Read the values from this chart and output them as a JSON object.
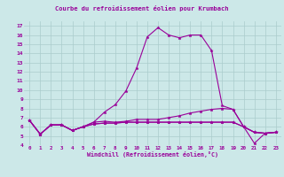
{
  "title": "Courbe du refroidissement éolien pour Krumbach",
  "xlabel": "Windchill (Refroidissement éolien,°C)",
  "background_color": "#cce8e8",
  "grid_color": "#aacccc",
  "line_color": "#990099",
  "xlim": [
    -0.5,
    23.5
  ],
  "ylim": [
    4,
    17.5
  ],
  "xticks": [
    0,
    1,
    2,
    3,
    4,
    5,
    6,
    7,
    8,
    9,
    10,
    11,
    12,
    13,
    14,
    15,
    16,
    17,
    18,
    19,
    20,
    21,
    22,
    23
  ],
  "yticks": [
    4,
    5,
    6,
    7,
    8,
    9,
    10,
    11,
    12,
    13,
    14,
    15,
    16,
    17
  ],
  "series": [
    [
      6.7,
      5.2,
      6.2,
      6.2,
      5.6,
      6.0,
      6.5,
      7.6,
      8.4,
      9.9,
      12.4,
      15.8,
      16.8,
      16.0,
      15.7,
      16.0,
      16.0,
      14.3,
      8.3,
      7.9,
      6.0,
      5.4,
      5.3,
      5.4
    ],
    [
      6.7,
      5.2,
      6.2,
      6.2,
      5.6,
      6.0,
      6.5,
      6.6,
      6.5,
      6.6,
      6.8,
      6.8,
      6.8,
      7.0,
      7.2,
      7.5,
      7.7,
      7.9,
      8.0,
      7.9,
      6.0,
      5.4,
      5.3,
      5.4
    ],
    [
      6.7,
      5.2,
      6.2,
      6.2,
      5.6,
      6.0,
      6.3,
      6.4,
      6.4,
      6.5,
      6.5,
      6.5,
      6.5,
      6.5,
      6.5,
      6.5,
      6.5,
      6.5,
      6.5,
      6.5,
      6.0,
      5.4,
      5.3,
      5.4
    ],
    [
      6.7,
      5.2,
      6.2,
      6.2,
      5.6,
      6.0,
      6.3,
      6.4,
      6.4,
      6.5,
      6.5,
      6.5,
      6.5,
      6.5,
      6.5,
      6.5,
      6.5,
      6.5,
      6.5,
      6.5,
      6.0,
      4.2,
      5.3,
      5.4
    ]
  ]
}
